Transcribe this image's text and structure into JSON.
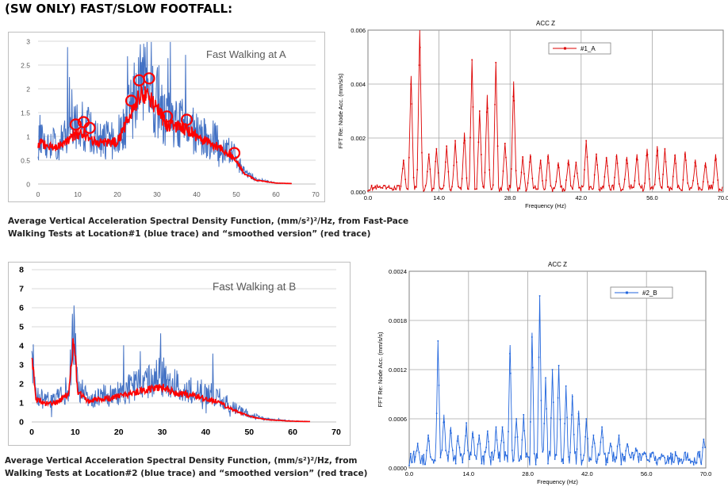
{
  "heading": "(SW ONLY) FAST/SLOW FOOTFALL:",
  "captions": [
    {
      "line1": "Average Vertical Acceleration Spectral Density Function, (mm/s²)²/Hz, from Fast-Pace",
      "line2": "Walking Tests at Location#1 (blue trace) and “smoothed version” (red trace)"
    },
    {
      "line1": "Average Vertical Acceleration Spectral Density Function, (mm/s²)²/Hz, from",
      "line2": "Walking Tests at Location#2 (blue trace) and “smoothed version” (red trace)"
    }
  ],
  "chart_data": [
    {
      "id": "psd_a",
      "type": "line",
      "title": "",
      "annotation": "Fast Walking at A",
      "xlabel": "",
      "ylabel": "",
      "xlim": [
        0,
        70
      ],
      "ylim": [
        0,
        3
      ],
      "xticks": [
        0,
        10,
        20,
        30,
        40,
        50,
        60,
        70
      ],
      "yticks": [
        0,
        0.5,
        1,
        1.5,
        2,
        2.5,
        3
      ],
      "ytick_labels": [
        "0",
        "0.5",
        "1",
        "1.5",
        "2",
        "2.5",
        "3"
      ],
      "grid": true,
      "colors": {
        "raw": "#4472c4",
        "smooth": "#ff0000",
        "circle": "#ff0000"
      },
      "series": [
        {
          "values_envelope": {
            "x": [
              0,
              5,
              9.5,
              12,
              15,
              20,
              23.5,
              25.5,
              28,
              32.5,
              37.5,
              41,
              45,
              49.5,
              52,
              55,
              60,
              64
            ],
            "y": [
              0.9,
              0.85,
              1.2,
              1.2,
              0.9,
              0.95,
              1.6,
              2.1,
              2.0,
              1.35,
              1.25,
              1.0,
              0.9,
              0.6,
              0.25,
              0.1,
              0.02,
              0.01
            ]
          }
        },
        {
          "values_smooth": {
            "x": [
              0,
              5,
              9.5,
              12,
              15,
              20,
              23.5,
              25.5,
              28,
              32.5,
              37.5,
              41,
              45,
              49.5,
              52,
              55,
              60,
              64
            ],
            "y": [
              0.85,
              0.78,
              1.05,
              1.05,
              0.85,
              0.9,
              1.5,
              1.9,
              1.8,
              1.25,
              1.15,
              0.95,
              0.8,
              0.55,
              0.22,
              0.08,
              0.02,
              0.01
            ]
          }
        }
      ],
      "circles": [
        {
          "x": 9.5,
          "y": 1.25
        },
        {
          "x": 11.5,
          "y": 1.3
        },
        {
          "x": 13,
          "y": 1.18
        },
        {
          "x": 23.5,
          "y": 1.75
        },
        {
          "x": 25.5,
          "y": 2.18
        },
        {
          "x": 28,
          "y": 2.22
        },
        {
          "x": 32.5,
          "y": 1.42
        },
        {
          "x": 37.5,
          "y": 1.35
        },
        {
          "x": 49.5,
          "y": 0.65
        }
      ]
    },
    {
      "id": "fft_a",
      "type": "line",
      "title": "ACC Z",
      "xlabel": "Frequency (Hz)",
      "ylabel": "FFT Re: Node Acc. (mm/s/s)",
      "xlim": [
        0,
        70
      ],
      "ylim": [
        0,
        0.006
      ],
      "xticks": [
        0,
        14,
        28,
        42,
        56,
        70
      ],
      "xtick_labels": [
        "0.0",
        "14.0",
        "28.0",
        "42.0",
        "56.0",
        "70.0"
      ],
      "yticks": [
        0,
        0.002,
        0.004,
        0.006
      ],
      "ytick_labels": [
        "0.000",
        "0.002",
        "0.004",
        "0.006"
      ],
      "grid": true,
      "legend": {
        "placement": "top-center",
        "name": "#1_A"
      },
      "color": "#dd0000",
      "peaks": [
        {
          "x": 7.0,
          "y": 0.0012
        },
        {
          "x": 8.5,
          "y": 0.0043
        },
        {
          "x": 10.2,
          "y": 0.006
        },
        {
          "x": 12.0,
          "y": 0.0014
        },
        {
          "x": 13.5,
          "y": 0.0016
        },
        {
          "x": 15.5,
          "y": 0.0017
        },
        {
          "x": 17.2,
          "y": 0.0019
        },
        {
          "x": 19.0,
          "y": 0.0022
        },
        {
          "x": 20.5,
          "y": 0.0049
        },
        {
          "x": 22.0,
          "y": 0.003
        },
        {
          "x": 23.5,
          "y": 0.0036
        },
        {
          "x": 25.2,
          "y": 0.0048
        },
        {
          "x": 27.0,
          "y": 0.0018
        },
        {
          "x": 28.7,
          "y": 0.0041
        },
        {
          "x": 30.5,
          "y": 0.0013
        },
        {
          "x": 32.0,
          "y": 0.0014
        },
        {
          "x": 34.0,
          "y": 0.0012
        },
        {
          "x": 35.5,
          "y": 0.0014
        },
        {
          "x": 37.5,
          "y": 0.0011
        },
        {
          "x": 39.5,
          "y": 0.0012
        },
        {
          "x": 41.0,
          "y": 0.0011
        },
        {
          "x": 43.0,
          "y": 0.0019
        },
        {
          "x": 45.0,
          "y": 0.0014
        },
        {
          "x": 47.0,
          "y": 0.0013
        },
        {
          "x": 49.0,
          "y": 0.0014
        },
        {
          "x": 51.0,
          "y": 0.0013
        },
        {
          "x": 53.0,
          "y": 0.0014
        },
        {
          "x": 55.0,
          "y": 0.0016
        },
        {
          "x": 57.0,
          "y": 0.0017
        },
        {
          "x": 58.5,
          "y": 0.0016
        },
        {
          "x": 60.5,
          "y": 0.0014
        },
        {
          "x": 62.5,
          "y": 0.0015
        },
        {
          "x": 64.5,
          "y": 0.0012
        },
        {
          "x": 66.5,
          "y": 0.0011
        },
        {
          "x": 68.5,
          "y": 0.0014
        }
      ]
    },
    {
      "id": "psd_b",
      "type": "line",
      "title": "",
      "annotation": "Fast Walking at B",
      "xlabel": "",
      "ylabel": "",
      "xlim": [
        0,
        70
      ],
      "ylim": [
        0,
        8
      ],
      "xticks": [
        0,
        10,
        20,
        30,
        40,
        50,
        60,
        70
      ],
      "yticks": [
        0,
        1,
        2,
        3,
        4,
        5,
        6,
        7,
        8
      ],
      "grid": true,
      "colors": {
        "raw": "#4472c4",
        "smooth": "#ff0000"
      },
      "series": [
        {
          "values_envelope": {
            "x": [
              0,
              1,
              3,
              6,
              8.5,
              9.7,
              10.5,
              13,
              18,
              23,
              27,
              30,
              33,
              38,
              43,
              46,
              50,
              54,
              60,
              64
            ],
            "y": [
              4.0,
              1.4,
              1.1,
              1.2,
              1.8,
              5.5,
              1.9,
              1.3,
              1.4,
              1.8,
              2.1,
              2.4,
              1.9,
              1.6,
              1.3,
              0.8,
              0.4,
              0.15,
              0.05,
              0.03
            ]
          }
        },
        {
          "values_smooth": {
            "x": [
              0,
              1,
              3,
              6,
              8.5,
              9.7,
              10.5,
              13,
              18,
              23,
              27,
              30,
              33,
              38,
              43,
              46,
              50,
              54,
              60,
              64
            ],
            "y": [
              3.5,
              1.2,
              0.95,
              1.05,
              1.5,
              4.6,
              1.6,
              1.1,
              1.25,
              1.5,
              1.7,
              1.85,
              1.55,
              1.35,
              1.05,
              0.65,
              0.3,
              0.12,
              0.04,
              0.02
            ]
          }
        }
      ]
    },
    {
      "id": "fft_b",
      "type": "line",
      "title": "ACC Z",
      "xlabel": "Frequency (Hz)",
      "ylabel": "FFT Re: Node Acc. (mm/s/s)",
      "xlim": [
        0,
        70
      ],
      "ylim": [
        0,
        0.0024
      ],
      "xticks": [
        0,
        14,
        28,
        42,
        56,
        70
      ],
      "xtick_labels": [
        "0.0",
        "14.0",
        "28.0",
        "42.0",
        "56.0",
        "70.0"
      ],
      "yticks": [
        0,
        0.0006,
        0.0012,
        0.0018,
        0.0024
      ],
      "ytick_labels": [
        "0.0000",
        "0.0006",
        "0.0012",
        "0.0018",
        "0.0024"
      ],
      "grid": true,
      "legend": {
        "placement": "top-right",
        "name": "#2_B"
      },
      "color": "#2266dd",
      "peaks": [
        {
          "x": 2.0,
          "y": 0.0003
        },
        {
          "x": 4.5,
          "y": 0.0004
        },
        {
          "x": 6.8,
          "y": 0.00155
        },
        {
          "x": 8.2,
          "y": 0.00065
        },
        {
          "x": 9.8,
          "y": 0.0005
        },
        {
          "x": 11.5,
          "y": 0.0004
        },
        {
          "x": 13.5,
          "y": 0.00055
        },
        {
          "x": 15.0,
          "y": 0.00045
        },
        {
          "x": 16.5,
          "y": 0.0004
        },
        {
          "x": 18.5,
          "y": 0.00045
        },
        {
          "x": 20.5,
          "y": 0.0005
        },
        {
          "x": 22.0,
          "y": 0.0005
        },
        {
          "x": 23.8,
          "y": 0.0015
        },
        {
          "x": 25.3,
          "y": 0.0006
        },
        {
          "x": 27.0,
          "y": 0.00065
        },
        {
          "x": 29.0,
          "y": 0.00165
        },
        {
          "x": 30.8,
          "y": 0.0021
        },
        {
          "x": 32.2,
          "y": 0.0011
        },
        {
          "x": 33.8,
          "y": 0.0012
        },
        {
          "x": 35.3,
          "y": 0.00125
        },
        {
          "x": 37.0,
          "y": 0.001
        },
        {
          "x": 38.5,
          "y": 0.0009
        },
        {
          "x": 40.0,
          "y": 0.0007
        },
        {
          "x": 41.8,
          "y": 0.0006
        },
        {
          "x": 43.5,
          "y": 0.0004
        },
        {
          "x": 45.5,
          "y": 0.0005
        },
        {
          "x": 47.5,
          "y": 0.0003
        },
        {
          "x": 49.5,
          "y": 0.0004
        },
        {
          "x": 51.5,
          "y": 0.0003
        },
        {
          "x": 53.5,
          "y": 0.00025
        },
        {
          "x": 55.5,
          "y": 0.0002
        },
        {
          "x": 57.5,
          "y": 0.0002
        },
        {
          "x": 60.0,
          "y": 0.00015
        },
        {
          "x": 63.0,
          "y": 0.00015
        },
        {
          "x": 66.0,
          "y": 0.0001
        },
        {
          "x": 69.5,
          "y": 0.00035
        }
      ]
    }
  ]
}
